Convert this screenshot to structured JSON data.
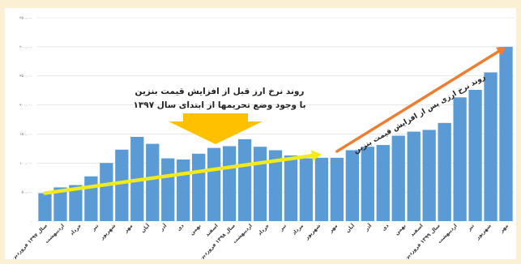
{
  "chart_data": {
    "type": "bar",
    "title": "",
    "xlabel": "",
    "ylabel": "",
    "ylim": [
      0,
      350000
    ],
    "ytick_values": [
      0,
      50000,
      100000,
      150000,
      200000,
      250000,
      300000,
      350000
    ],
    "ytick_labels": [
      "۰",
      "۵۰,۰۰۰",
      "۱۰۰,۰۰۰",
      "۱۵۰,۰۰۰",
      "۲۰۰,۰۰۰",
      "۲۵۰,۰۰۰",
      "۳۰۰,۰۰۰",
      "۳۵۰,۰۰۰"
    ],
    "grid": true,
    "bar_color": "#5b9bd5",
    "categories": [
      "سال ۱۳۹۷ فروردین",
      "اردیبهشت",
      "خرداد",
      "تیر",
      "مرداد",
      "شهریور",
      "مهر",
      "آبان",
      "آذر",
      "دی",
      "بهمن",
      "اسفند",
      "سال ۱۳۹۸ فروردین",
      "اردیبهشت",
      "خرداد",
      "تیر",
      "مرداد",
      "شهریور",
      "مهر",
      "آبان",
      "آذر",
      "دی",
      "بهمن",
      "اسفند",
      "سال ۱۳۹۹ فروردین",
      "اردیبهشت",
      "خرداد",
      "تیر",
      "مرداد",
      "شهریور",
      "مهر"
    ],
    "xtick_labels_shown": [
      "سال ۱۳۹۷ فروردین",
      "اردیبهشت",
      "خرداد",
      "تیر",
      "شهریور",
      "مهر",
      "آبان",
      "آذر",
      "دی",
      "بهمن",
      "اسفند",
      "سال ۱۳۹۸ فروردین",
      "اردیبهشت",
      "خرداد",
      "تیر",
      "مرداد",
      "شهریور",
      "مهر",
      "آبان",
      "آذر",
      "دی",
      "بهمن",
      "اسفند",
      "سال ۱۳۹۹ فروردین",
      "اردیبهشت",
      "تیر",
      "شهریور",
      "مهر"
    ],
    "values": [
      48000,
      58000,
      62000,
      77000,
      100000,
      123000,
      145000,
      133000,
      108000,
      106000,
      116000,
      126000,
      129000,
      141000,
      128000,
      122000,
      113000,
      108000,
      109000,
      109000,
      122000,
      128000,
      131000,
      147000,
      154000,
      157000,
      169000,
      213000,
      226000,
      256000,
      300000
    ],
    "annotations": [
      {
        "id": "before",
        "lines": [
          "روند نرخ ارز قبل از افزایش قیمت بنزین",
          "با وجود وضع تحریمها از ابتدای سال ۱۳۹۷"
        ]
      },
      {
        "id": "after",
        "lines": [
          "روند نرخ ارزی پس از افزایش قیمت بنزین"
        ]
      }
    ],
    "trend_lines": [
      {
        "id": "before",
        "color": "#f2ea1a",
        "from_index": 0,
        "from_value": 48000,
        "to_index": 18,
        "to_value": 115000
      },
      {
        "id": "after",
        "color": "#ed7d31",
        "from_index": 19,
        "from_value": 120000,
        "to_index": 30,
        "to_value": 300000
      }
    ],
    "down_arrow_color": "#ffc000"
  }
}
